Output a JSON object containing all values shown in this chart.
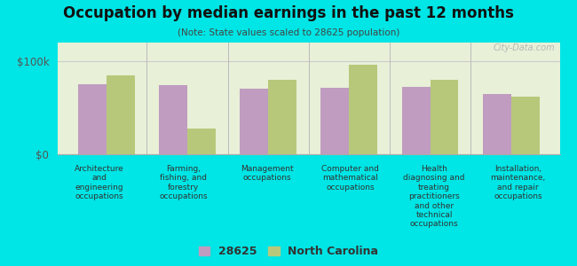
{
  "title": "Occupation by median earnings in the past 12 months",
  "subtitle": "(Note: State values scaled to 28625 population)",
  "categories": [
    "Architecture\nand\nengineering\noccupations",
    "Farming,\nfishing, and\nforestry\noccupations",
    "Management\noccupations",
    "Computer and\nmathematical\noccupations",
    "Health\ndiagnosing and\ntreating\npractitioners\nand other\ntechnical\noccupations",
    "Installation,\nmaintenance,\nand repair\noccupations"
  ],
  "values_28625": [
    75000,
    74000,
    70000,
    71000,
    72000,
    65000
  ],
  "values_nc": [
    85000,
    28000,
    80000,
    96000,
    80000,
    62000
  ],
  "color_28625": "#c09cc0",
  "color_nc": "#b8c87a",
  "ylim": [
    0,
    120000
  ],
  "ytick_labels": [
    "$0",
    "$100k"
  ],
  "bg_color": "#e8f0d8",
  "outer_bg": "#00e5e5",
  "legend_label_28625": "28625",
  "legend_label_nc": "North Carolina",
  "watermark": "City-Data.com",
  "bar_width": 0.35
}
